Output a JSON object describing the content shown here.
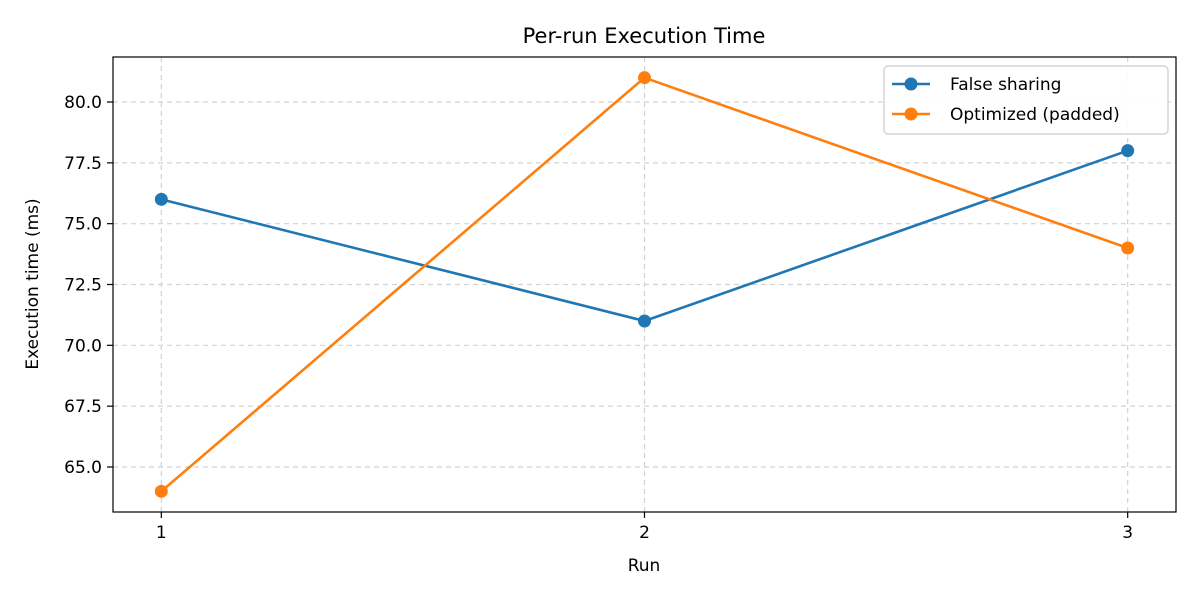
{
  "chart_data": {
    "type": "line",
    "title": "Per-run Execution Time",
    "xlabel": "Run",
    "ylabel": "Execution time (ms)",
    "x": [
      1,
      2,
      3
    ],
    "x_tick_labels": [
      "1",
      "2",
      "3"
    ],
    "xlim": [
      0.9,
      3.1
    ],
    "ylim": [
      63.15,
      81.85
    ],
    "y_ticks": [
      65.0,
      67.5,
      70.0,
      72.5,
      75.0,
      77.5,
      80.0
    ],
    "y_tick_labels": [
      "65.0",
      "67.5",
      "70.0",
      "72.5",
      "75.0",
      "77.5",
      "80.0"
    ],
    "grid": true,
    "legend_position": "top-right",
    "series": [
      {
        "name": "False sharing",
        "values": [
          76,
          71,
          78
        ],
        "color": "#1f77b4",
        "marker": "circle"
      },
      {
        "name": "Optimized (padded)",
        "values": [
          64,
          81,
          74
        ],
        "color": "#ff7f0e",
        "marker": "circle"
      }
    ]
  }
}
